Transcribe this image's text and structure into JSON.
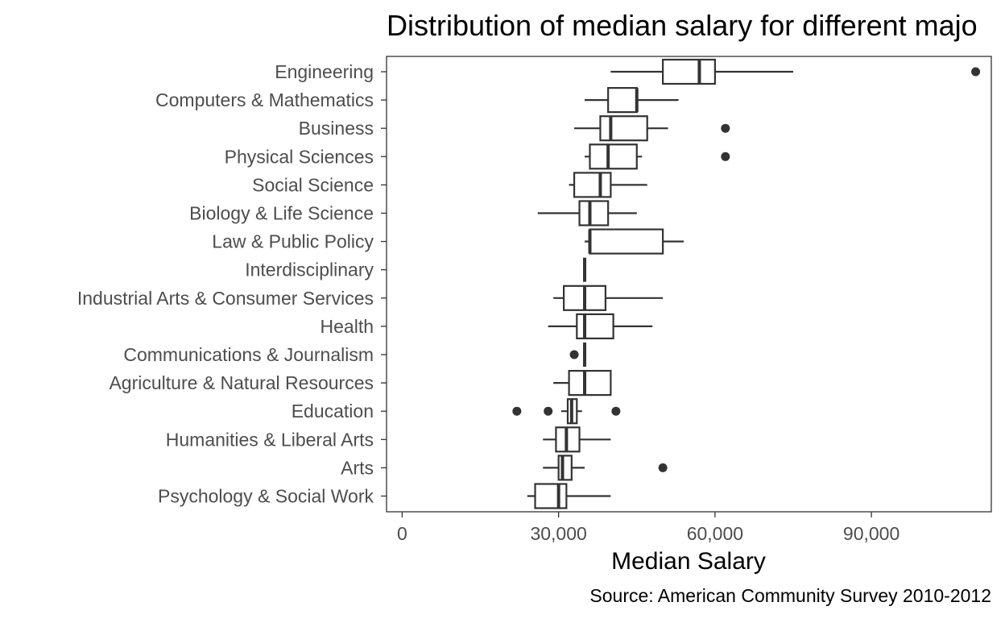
{
  "chart_data": {
    "type": "boxplot",
    "orientation": "horizontal",
    "title": "Distribution of median salary for different majo",
    "xlabel": "Median Salary",
    "caption": "Source: American Community Survey 2010-2012",
    "xlim": [
      -3000,
      113000
    ],
    "xticks": [
      0,
      30000,
      60000,
      90000
    ],
    "xtick_labels": [
      "0",
      "30,000",
      "60,000",
      "90,000"
    ],
    "grid": false,
    "categories": [
      "Engineering",
      "Computers & Mathematics",
      "Business",
      "Physical Sciences",
      "Social Science",
      "Biology & Life Science",
      "Law & Public Policy",
      "Interdisciplinary",
      "Industrial Arts & Consumer Services",
      "Health",
      "Communications & Journalism",
      "Agriculture & Natural Resources",
      "Education",
      "Humanities & Liberal Arts",
      "Arts",
      "Psychology & Social Work"
    ],
    "boxes": [
      {
        "category": "Engineering",
        "whisker_low": 40000,
        "q1": 50000,
        "median": 57000,
        "q3": 60000,
        "whisker_high": 75000,
        "outliers": [
          110000
        ]
      },
      {
        "category": "Computers & Mathematics",
        "whisker_low": 35000,
        "q1": 39500,
        "median": 45000,
        "q3": 45000,
        "whisker_high": 53000,
        "outliers": []
      },
      {
        "category": "Business",
        "whisker_low": 33000,
        "q1": 38000,
        "median": 40000,
        "q3": 47000,
        "whisker_high": 51000,
        "outliers": [
          62000
        ]
      },
      {
        "category": "Physical Sciences",
        "whisker_low": 35000,
        "q1": 36000,
        "median": 39500,
        "q3": 45000,
        "whisker_high": 46000,
        "outliers": [
          62000
        ]
      },
      {
        "category": "Social Science",
        "whisker_low": 32000,
        "q1": 33000,
        "median": 38000,
        "q3": 40000,
        "whisker_high": 47000,
        "outliers": []
      },
      {
        "category": "Biology & Life Science",
        "whisker_low": 26000,
        "q1": 34000,
        "median": 36000,
        "q3": 39500,
        "whisker_high": 45000,
        "outliers": []
      },
      {
        "category": "Law & Public Policy",
        "whisker_low": 35000,
        "q1": 36000,
        "median": 36000,
        "q3": 50000,
        "whisker_high": 54000,
        "outliers": []
      },
      {
        "category": "Interdisciplinary",
        "whisker_low": 35000,
        "q1": 35000,
        "median": 35000,
        "q3": 35000,
        "whisker_high": 35000,
        "outliers": []
      },
      {
        "category": "Industrial Arts & Consumer Services",
        "whisker_low": 29000,
        "q1": 31000,
        "median": 35000,
        "q3": 39000,
        "whisker_high": 50000,
        "outliers": []
      },
      {
        "category": "Health",
        "whisker_low": 28000,
        "q1": 33500,
        "median": 35000,
        "q3": 40500,
        "whisker_high": 48000,
        "outliers": []
      },
      {
        "category": "Communications & Journalism",
        "whisker_low": 35000,
        "q1": 35000,
        "median": 35000,
        "q3": 35000,
        "whisker_high": 35000,
        "outliers": [
          33000
        ]
      },
      {
        "category": "Agriculture & Natural Resources",
        "whisker_low": 29000,
        "q1": 32000,
        "median": 35000,
        "q3": 40000,
        "whisker_high": 40000,
        "outliers": []
      },
      {
        "category": "Education",
        "whisker_low": 30500,
        "q1": 31750,
        "median": 32500,
        "q3": 33500,
        "whisker_high": 34500,
        "outliers": [
          22000,
          28000,
          41000
        ]
      },
      {
        "category": "Humanities & Liberal Arts",
        "whisker_low": 27000,
        "q1": 29500,
        "median": 31500,
        "q3": 34000,
        "whisker_high": 40000,
        "outliers": []
      },
      {
        "category": "Arts",
        "whisker_low": 27000,
        "q1": 30000,
        "median": 30750,
        "q3": 32500,
        "whisker_high": 35000,
        "outliers": [
          50000
        ]
      },
      {
        "category": "Psychology & Social Work",
        "whisker_low": 24000,
        "q1": 25500,
        "median": 30000,
        "q3": 31500,
        "whisker_high": 40000,
        "outliers": []
      }
    ],
    "colors": {
      "box_stroke": "#333333",
      "outlier_fill": "#333333",
      "panel_border": "#333333",
      "axis_text": "#4d4d4d",
      "title_text": "#000000"
    }
  }
}
